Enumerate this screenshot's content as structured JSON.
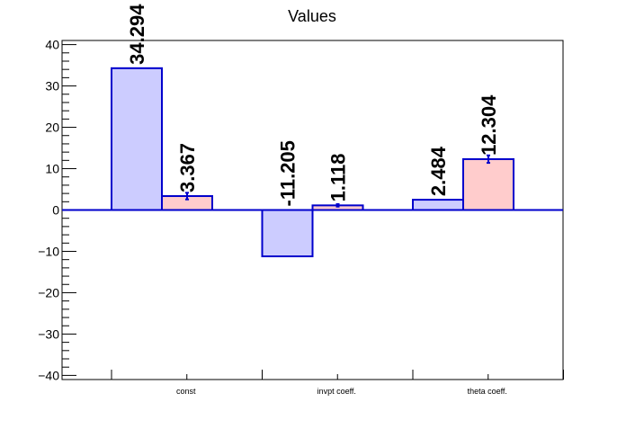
{
  "chart_data": {
    "type": "bar",
    "title": "Values",
    "xlabel": "",
    "ylabel": "",
    "categories": [
      "const",
      "invpt coeff.",
      "theta coeff."
    ],
    "series": [
      {
        "values": [
          34.294,
          -11.205,
          2.484
        ],
        "errors": [
          0.0,
          0.0,
          0.0
        ],
        "labels": [
          "34.294",
          "-11.205",
          "2.484"
        ],
        "fill": "#ccccff",
        "stroke": "#0000cc"
      },
      {
        "values": [
          3.367,
          1.118,
          12.304
        ],
        "errors": [
          0.8,
          0.3,
          0.9
        ],
        "labels": [
          "3.367",
          "1.118",
          "12.304"
        ],
        "fill": "#ffcccc",
        "stroke": "#0000cc"
      }
    ],
    "ylim": [
      -41,
      41
    ],
    "yticks": [
      -40,
      -30,
      -20,
      -10,
      0,
      10,
      20,
      30,
      40
    ],
    "ytick_labels": [
      "−40",
      "−30",
      "−20",
      "−10",
      "0",
      "10",
      "20",
      "30",
      "40"
    ],
    "grid": false,
    "legend": "none",
    "zero_line_color": "#0000cc",
    "axis_color": "#000000"
  }
}
